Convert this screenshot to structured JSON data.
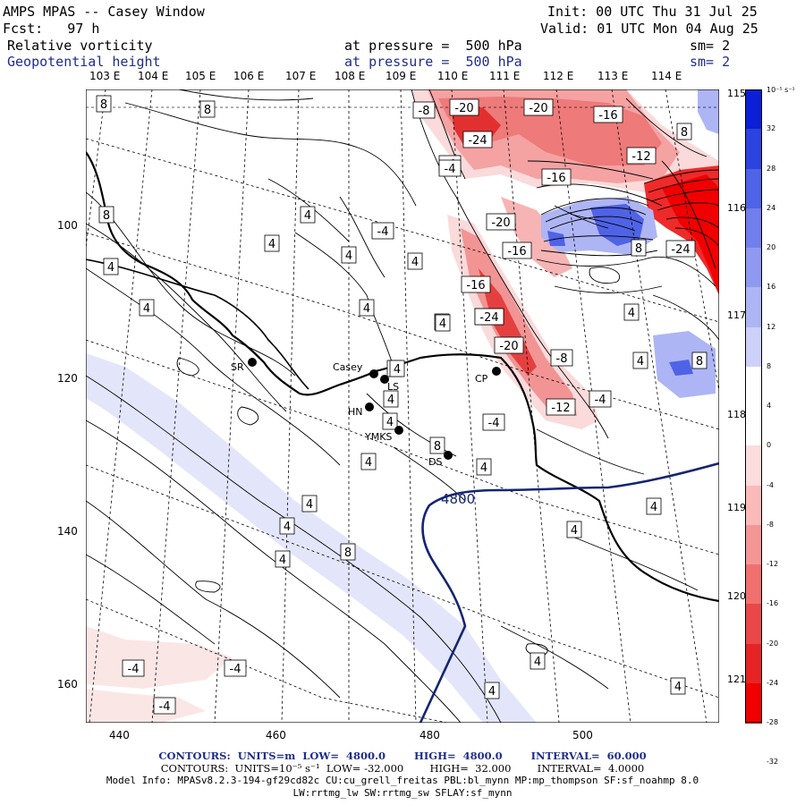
{
  "header": {
    "title": "AMPS MPAS -- Casey Window",
    "init": "Init: 00 UTC Thu 31 Jul 25",
    "fcst": "Fcst:   97 h",
    "valid": "Valid: 01 UTC Mon 04 Aug 25",
    "field1": "Relative vorticity",
    "field1_pressure": "at pressure =  500 hPa",
    "field1_sm": "sm= 2",
    "field2": "Geopotential height",
    "field2_pressure": "at pressure =  500 hPa",
    "field2_sm": "sm= 2"
  },
  "longitude_labels": [
    "103 E",
    "104 E",
    "105 E",
    "106 E",
    "107 E",
    "108 E",
    "109 E",
    "110 E",
    "111 E",
    "112 E",
    "113 E",
    "114 E"
  ],
  "latitude_labels": [
    "115 E",
    "116 E",
    "117 E",
    "118 E",
    "119 E",
    "120 E",
    "121 E"
  ],
  "x_axis": {
    "ticks": [
      "440",
      "460",
      "480",
      "500"
    ]
  },
  "y_axis": {
    "ticks": [
      "100",
      "120",
      "140",
      "160"
    ]
  },
  "colorbar": {
    "unit": "10⁻⁵ s⁻¹",
    "labels": [
      "32",
      "28",
      "24",
      "20",
      "16",
      "12",
      "8",
      "4",
      "0",
      "-4",
      "-8",
      "-12",
      "-16",
      "-20",
      "-24",
      "-28",
      "-32"
    ],
    "colors": [
      "#0a1fd6",
      "#2c43e0",
      "#4f63e6",
      "#717fec",
      "#8f99f0",
      "#aeb5f5",
      "#cdd1f9",
      "#ffffff",
      "#ffffff",
      "#fcdcdc",
      "#fababa",
      "#f59696",
      "#f07070",
      "#ea4848",
      "#e52525",
      "#f00000"
    ]
  },
  "stations": [
    {
      "name": "SR"
    },
    {
      "name": "Casey"
    },
    {
      "name": "LS"
    },
    {
      "name": "HN"
    },
    {
      "name": "YMKS"
    },
    {
      "name": "DS"
    },
    {
      "name": "CP"
    }
  ],
  "contour_labels": {
    "vort": [
      "8",
      "8",
      "8",
      "4",
      "4",
      "4",
      "4",
      "4",
      "4",
      "-4",
      "4",
      "4",
      "8",
      "4",
      "4",
      "-4",
      "4",
      "8",
      "4",
      "4",
      "4",
      "8",
      "4",
      "4",
      "8",
      "-4",
      "-4",
      "-4",
      "-4",
      "-8",
      "-20",
      "-20",
      "-20",
      "-16",
      "-24",
      "-4",
      "-16",
      "-12",
      "-20",
      "-16",
      "8",
      "-24",
      "-16",
      "-24",
      "-20",
      "4",
      "4",
      "8",
      "-8",
      "-12",
      "-4",
      "4",
      "4",
      "4",
      "4",
      "4",
      "4"
    ],
    "height": "4800"
  },
  "footer": {
    "line1": "CONTOURS:  UNITS=m  LOW=  4800.0        HIGH=  4800.0        INTERVAL=  60.000",
    "line2": "CONTOURS:  UNITS=10⁻⁵ s⁻¹  LOW= -32.000        HIGH=  32.000        INTERVAL=  4.0000",
    "line3": "Model Info: MPASv8.2.3-194-gf29cd82c CU:cu_grell_freitas PBL:bl_mynn MP:mp_thompson SF:sf_noahmp 8.0",
    "line4": "LW:rrtmg_lw SW:rrtmg_sw SFLAY:sf_mynn"
  }
}
